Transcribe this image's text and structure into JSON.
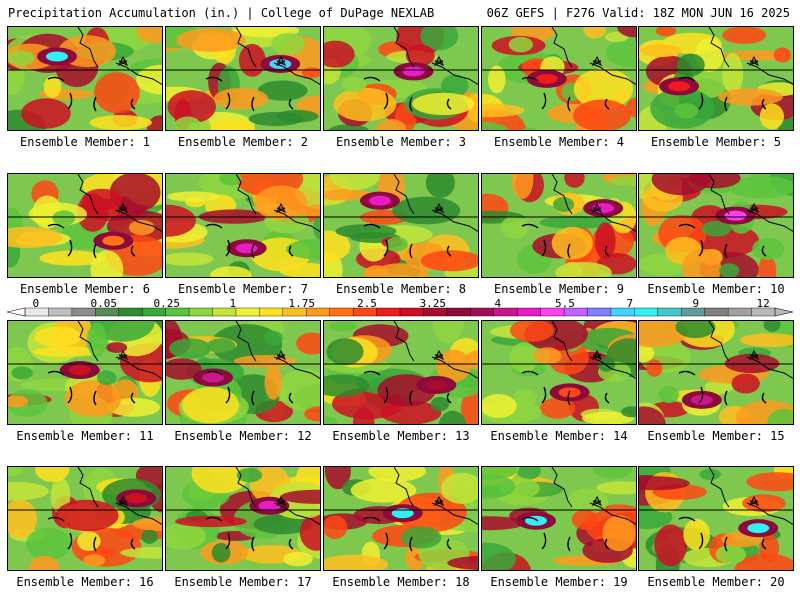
{
  "header": {
    "left": "Precipitation Accumulation (in.) | College of DuPage NEXLAB",
    "right": "06Z GEFS | F276 Valid: 18Z MON JUN 16 2025"
  },
  "colorbar": {
    "labels": [
      "0",
      "0.05",
      "0.25",
      "1",
      "1.75",
      "2.5",
      "3.25",
      "4",
      "5.5",
      "7",
      "9",
      "12"
    ],
    "colors": [
      "#e8e8e8",
      "#bdbdbd",
      "#8c8c8c",
      "#5a8a5a",
      "#2e8b2e",
      "#3aa83a",
      "#5cc43c",
      "#8ed63e",
      "#c4e43a",
      "#f0f032",
      "#ffe01e",
      "#ffbe1e",
      "#ff9a1e",
      "#ff7214",
      "#ff4614",
      "#ee1c1c",
      "#cc1024",
      "#a80c2c",
      "#8c0a3c",
      "#a0105a",
      "#c8188c",
      "#e81cc4",
      "#ff40f0",
      "#c060ff",
      "#8080ff",
      "#40d4ff",
      "#30f0f0",
      "#40c8c8",
      "#609c9c",
      "#808080",
      "#a0a0a0",
      "#b8b8b8"
    ]
  },
  "members": [
    {
      "label": "Ensemble Member: 1",
      "max_color": "#30f0f0"
    },
    {
      "label": "Ensemble Member: 2",
      "max_color": "#40d4ff"
    },
    {
      "label": "Ensemble Member: 3",
      "max_color": "#e81cc4"
    },
    {
      "label": "Ensemble Member: 4",
      "max_color": "#ee1c1c"
    },
    {
      "label": "Ensemble Member: 5",
      "max_color": "#ee1c1c"
    },
    {
      "label": "Ensemble Member: 6",
      "max_color": "#ff7214"
    },
    {
      "label": "Ensemble Member: 7",
      "max_color": "#e81cc4"
    },
    {
      "label": "Ensemble Member: 8",
      "max_color": "#e81cc4"
    },
    {
      "label": "Ensemble Member: 9",
      "max_color": "#e81cc4"
    },
    {
      "label": "Ensemble Member: 10",
      "max_color": "#ff40f0"
    },
    {
      "label": "Ensemble Member: 11",
      "max_color": "#cc1024"
    },
    {
      "label": "Ensemble Member: 12",
      "max_color": "#c8188c"
    },
    {
      "label": "Ensemble Member: 13",
      "max_color": "#a80c2c"
    },
    {
      "label": "Ensemble Member: 14",
      "max_color": "#ff4614"
    },
    {
      "label": "Ensemble Member: 15",
      "max_color": "#c8188c"
    },
    {
      "label": "Ensemble Member: 16",
      "max_color": "#cc1024"
    },
    {
      "label": "Ensemble Member: 17",
      "max_color": "#e81cc4"
    },
    {
      "label": "Ensemble Member: 18",
      "max_color": "#30f0f0"
    },
    {
      "label": "Ensemble Member: 19",
      "max_color": "#30f0f0"
    },
    {
      "label": "Ensemble Member: 20",
      "max_color": "#30f0f0"
    }
  ]
}
